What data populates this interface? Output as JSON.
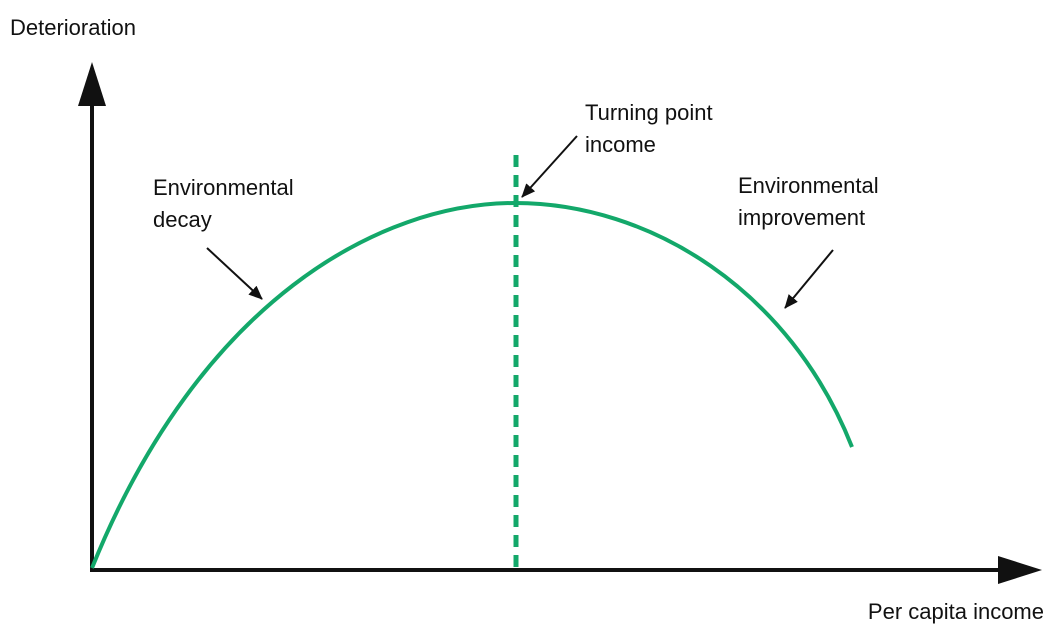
{
  "diagram": {
    "y_axis_label": "Deterioration",
    "x_axis_label": "Per capita income",
    "annotations": [
      {
        "lines": [
          "Turning point",
          "income"
        ]
      },
      {
        "lines": [
          "Environmental",
          "decay"
        ]
      },
      {
        "lines": [
          "Environmental",
          "improvement"
        ]
      }
    ]
  }
}
